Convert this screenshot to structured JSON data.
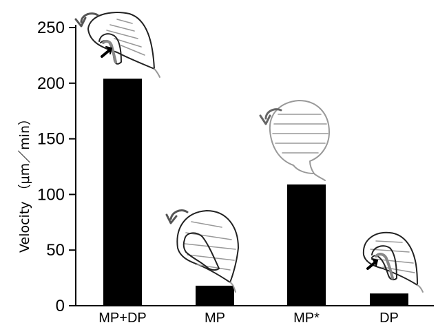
{
  "chart_data": {
    "type": "bar",
    "categories": [
      "MP+DP",
      "MP",
      "MP*",
      "DP"
    ],
    "values": [
      204,
      18,
      109,
      11
    ],
    "ylabel": "Velocity （μm／min）",
    "ylim": [
      0,
      250
    ],
    "yticks": [
      0,
      50,
      100,
      150,
      200,
      250
    ],
    "grid": false,
    "bar_color": "#000000",
    "icons": [
      "cell-diagram-mp-dp-icon",
      "cell-diagram-mp-icon",
      "cell-diagram-mp-star-icon",
      "cell-diagram-dp-icon"
    ]
  }
}
